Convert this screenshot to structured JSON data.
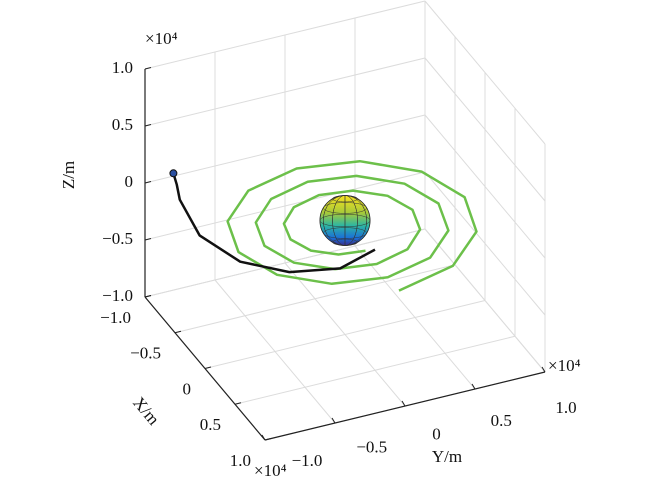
{
  "chart_data": {
    "type": "line3d",
    "xlabel": "X/m",
    "ylabel": "Y/m",
    "zlabel": "Z/m",
    "x_exponent": "×10⁴",
    "y_exponent": "×10⁴",
    "z_exponent": "×10⁴",
    "xlim": [
      -10000,
      10000
    ],
    "ylim": [
      -10000,
      10000
    ],
    "zlim": [
      -10000,
      10000
    ],
    "xticks": [
      {
        "value": -10000,
        "label": "−1.0"
      },
      {
        "value": -5000,
        "label": "−0.5"
      },
      0,
      {
        "value": 5000,
        "label": "0.5"
      },
      {
        "value": 10000,
        "label": "1.0"
      }
    ],
    "yticks": [
      {
        "value": -10000,
        "label": "−1.0"
      },
      {
        "value": -5000,
        "label": "−0.5"
      },
      0,
      {
        "value": 5000,
        "label": "0.5"
      },
      {
        "value": 10000,
        "label": "1.0"
      }
    ],
    "zticks": [
      {
        "value": -10000,
        "label": "−1.0"
      },
      {
        "value": -5000,
        "label": "−0.5"
      },
      0,
      {
        "value": 5000,
        "label": "0.5"
      },
      {
        "value": 10000,
        "label": "1.0"
      }
    ],
    "grid": true,
    "series": [
      {
        "color": "#6cc04a",
        "x": [
          9000,
          7660,
          4340,
          0,
          -4190,
          -7130,
          -8070,
          -6860,
          -3880,
          0,
          3730,
          6320,
          7140,
          6050,
          3420,
          0,
          -3260,
          -5520,
          -6210,
          -5250,
          -2950,
          0,
          2800,
          4710,
          5280,
          4440,
          2490,
          0,
          -2330,
          -3910,
          -4350,
          -3640,
          -2020,
          0,
          1870,
          3100,
          3420
        ],
        "y": [
          0,
          4420,
          7530,
          8540,
          7260,
          4110,
          0,
          -3960,
          -6720,
          -7610,
          -6450,
          -3650,
          0,
          3490,
          5920,
          6680,
          5650,
          3180,
          0,
          -3030,
          -5110,
          -5750,
          -4840,
          -2720,
          0,
          2560,
          4300,
          4820,
          4040,
          2250,
          0,
          -2100,
          -3500,
          -3890,
          -3230,
          -1790,
          0
        ],
        "z": [
          -500,
          -500,
          -500,
          -500,
          -500,
          -500,
          -500,
          -500,
          -500,
          -500,
          -500,
          -500,
          -500,
          -500,
          -500,
          -500,
          -500,
          -500,
          -500,
          -500,
          -500,
          -500,
          -500,
          -500,
          -500,
          -500,
          -500,
          -500,
          -500,
          -500,
          -500,
          -500,
          -500,
          -500,
          -500,
          -500,
          -500
        ]
      },
      {
        "color": "#111111",
        "start_color": "#2a4fa0",
        "x": [
          -9000,
          -8900,
          -8400,
          -3700,
          500,
          3100,
          4100,
          2900
        ],
        "y": [
          -8400,
          -8200,
          -8200,
          -8800,
          -7700,
          -5300,
          -2100,
          900
        ],
        "z": [
          1000,
          0,
          -1000,
          -1000,
          -1000,
          -1000,
          -1000,
          -1000
        ]
      }
    ],
    "sphere": {
      "center": [
        0,
        0,
        0
      ],
      "radius": 2200
    }
  }
}
